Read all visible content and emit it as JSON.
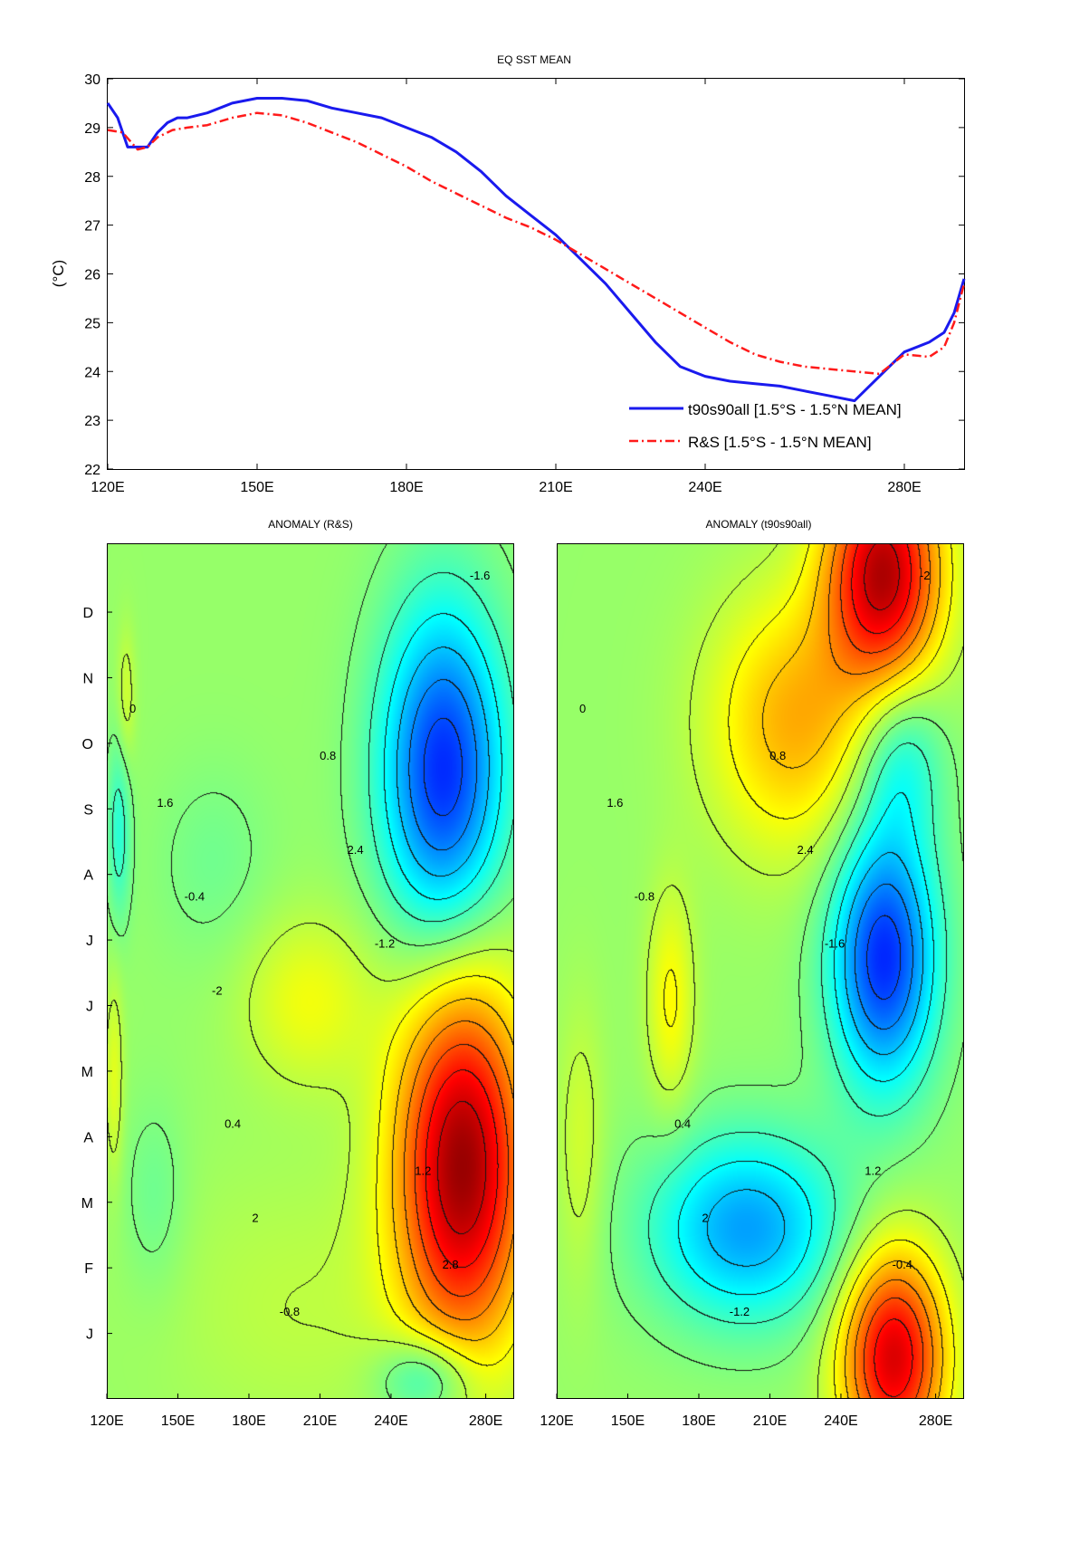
{
  "chart_data": [
    {
      "type": "line",
      "title": "EQ SST MEAN",
      "xlabel": "",
      "ylabel": "(°C)",
      "xlim": [
        120,
        292
      ],
      "ylim": [
        22,
        30
      ],
      "xticks": [
        120,
        150,
        180,
        210,
        240,
        280
      ],
      "xtick_labels": [
        "120E",
        "150E",
        "180E",
        "210E",
        "240E",
        "280E"
      ],
      "yticks": [
        22,
        23,
        24,
        25,
        26,
        27,
        28,
        29,
        30
      ],
      "ytick_labels": [
        "22",
        "23",
        "24",
        "25",
        "26",
        "27",
        "28",
        "29",
        "30"
      ],
      "grid": false,
      "legend_position": "bottom-right",
      "series": [
        {
          "name": "t90s90all [1.5°S - 1.5°N MEAN]",
          "color": "#1a1aee",
          "style": "solid",
          "x": [
            120,
            122,
            124,
            126,
            128,
            130,
            132,
            134,
            136,
            140,
            145,
            150,
            155,
            160,
            165,
            170,
            175,
            180,
            185,
            190,
            195,
            200,
            205,
            210,
            215,
            220,
            225,
            230,
            235,
            240,
            245,
            250,
            255,
            260,
            265,
            270,
            275,
            280,
            285,
            288,
            290,
            292
          ],
          "y": [
            29.5,
            29.2,
            28.6,
            28.6,
            28.6,
            28.9,
            29.1,
            29.2,
            29.2,
            29.3,
            29.5,
            29.6,
            29.6,
            29.55,
            29.4,
            29.3,
            29.2,
            29.0,
            28.8,
            28.5,
            28.1,
            27.6,
            27.2,
            26.8,
            26.3,
            25.8,
            25.2,
            24.6,
            24.1,
            23.9,
            23.8,
            23.75,
            23.7,
            23.6,
            23.5,
            23.4,
            23.9,
            24.4,
            24.6,
            24.8,
            25.2,
            25.9
          ]
        },
        {
          "name": "R&S [1.5°S - 1.5°N MEAN]",
          "color": "#ff1a1a",
          "style": "dashdot",
          "x": [
            120,
            123,
            126,
            128,
            130,
            133,
            136,
            140,
            145,
            150,
            155,
            160,
            165,
            170,
            175,
            180,
            185,
            190,
            195,
            200,
            205,
            210,
            215,
            220,
            225,
            230,
            235,
            240,
            245,
            250,
            255,
            260,
            265,
            270,
            275,
            280,
            285,
            288,
            290,
            292
          ],
          "y": [
            28.95,
            28.9,
            28.55,
            28.6,
            28.8,
            28.95,
            29.0,
            29.05,
            29.2,
            29.3,
            29.25,
            29.1,
            28.9,
            28.7,
            28.45,
            28.2,
            27.9,
            27.65,
            27.4,
            27.15,
            26.95,
            26.7,
            26.4,
            26.1,
            25.8,
            25.5,
            25.2,
            24.9,
            24.6,
            24.35,
            24.2,
            24.1,
            24.05,
            24.0,
            23.95,
            24.35,
            24.3,
            24.5,
            25.0,
            25.8
          ]
        }
      ]
    },
    {
      "type": "heatmap",
      "title": "ANOMALY (R&S)",
      "xlabel": "",
      "ylabel": "",
      "xlim": [
        120,
        292
      ],
      "xtick_labels": [
        "120E",
        "150E",
        "180E",
        "210E",
        "240E",
        "280E"
      ],
      "xticks": [
        120,
        150,
        180,
        210,
        240,
        280
      ],
      "ytick_labels": [
        "J",
        "F",
        "M",
        "A",
        "M",
        "J",
        "J",
        "A",
        "S",
        "O",
        "N",
        "D"
      ],
      "colormap": "jet",
      "color_range": [
        -2.8,
        2.8
      ],
      "features": [
        {
          "lon": 270,
          "month": 3.3,
          "value": 3.0,
          "lon_radius": 28,
          "month_radius": 2.6
        },
        {
          "lon": 262,
          "month": 8.8,
          "value": -2.4,
          "lon_radius": 26,
          "month_radius": 2.3
        },
        {
          "lon": 205,
          "month": 5.6,
          "value": 0.6,
          "lon_radius": 28,
          "month_radius": 1.2
        },
        {
          "lon": 125,
          "month": 8.0,
          "value": -0.7,
          "lon_radius": 5,
          "month_radius": 1.3
        },
        {
          "lon": 123,
          "month": 4.5,
          "value": 0.5,
          "lon_radius": 4,
          "month_radius": 1.4
        },
        {
          "lon": 128,
          "month": 9.8,
          "value": 0.4,
          "lon_radius": 4,
          "month_radius": 1.0
        },
        {
          "lon": 200,
          "month": 1.3,
          "value": 0.25,
          "lon_radius": 60,
          "month_radius": 2.0
        },
        {
          "lon": 165,
          "month": 7.5,
          "value": -0.25,
          "lon_radius": 25,
          "month_radius": 1.4
        },
        {
          "lon": 255,
          "month": 0.3,
          "value": -1.0,
          "lon_radius": 20,
          "month_radius": 0.6
        },
        {
          "lon": 140,
          "month": 2.8,
          "value": -0.3,
          "lon_radius": 14,
          "month_radius": 1.4
        }
      ],
      "contour_labels": [
        "0",
        "0.4",
        "0.8",
        "1.2",
        "1.6",
        "2",
        "2.4",
        "2.8",
        "-0.4",
        "-0.8",
        "-1.2",
        "-1.6",
        "-2"
      ]
    },
    {
      "type": "heatmap",
      "title": "ANOMALY (t90s90all)",
      "xlabel": "",
      "ylabel": "",
      "xlim": [
        120,
        292
      ],
      "xtick_labels": [
        "120E",
        "150E",
        "180E",
        "210E",
        "240E",
        "280E"
      ],
      "xticks": [
        120,
        150,
        180,
        210,
        240,
        280
      ],
      "ytick_labels": [],
      "colormap": "jet",
      "color_range": [
        -2.8,
        2.8
      ],
      "features": [
        {
          "lon": 258,
          "month": 11.6,
          "value": 2.8,
          "lon_radius": 24,
          "month_radius": 1.6
        },
        {
          "lon": 220,
          "month": 9.5,
          "value": 1.2,
          "lon_radius": 35,
          "month_radius": 1.8
        },
        {
          "lon": 258,
          "month": 6.2,
          "value": -2.4,
          "lon_radius": 22,
          "month_radius": 1.8
        },
        {
          "lon": 200,
          "month": 2.4,
          "value": -1.6,
          "lon_radius": 40,
          "month_radius": 1.3
        },
        {
          "lon": 262,
          "month": 0.6,
          "value": 2.6,
          "lon_radius": 22,
          "month_radius": 1.5
        },
        {
          "lon": 168,
          "month": 5.6,
          "value": 0.7,
          "lon_radius": 10,
          "month_radius": 1.5
        },
        {
          "lon": 265,
          "month": 9.0,
          "value": -0.9,
          "lon_radius": 18,
          "month_radius": 1.2
        },
        {
          "lon": 130,
          "month": 3.5,
          "value": 0.4,
          "lon_radius": 10,
          "month_radius": 2.0
        }
      ],
      "contour_labels": [
        "0",
        "0.4",
        "0.8",
        "1.2",
        "1.6",
        "2",
        "2.4",
        "-0.4",
        "-0.8",
        "-1.2",
        "-1.6",
        "-2"
      ]
    }
  ]
}
